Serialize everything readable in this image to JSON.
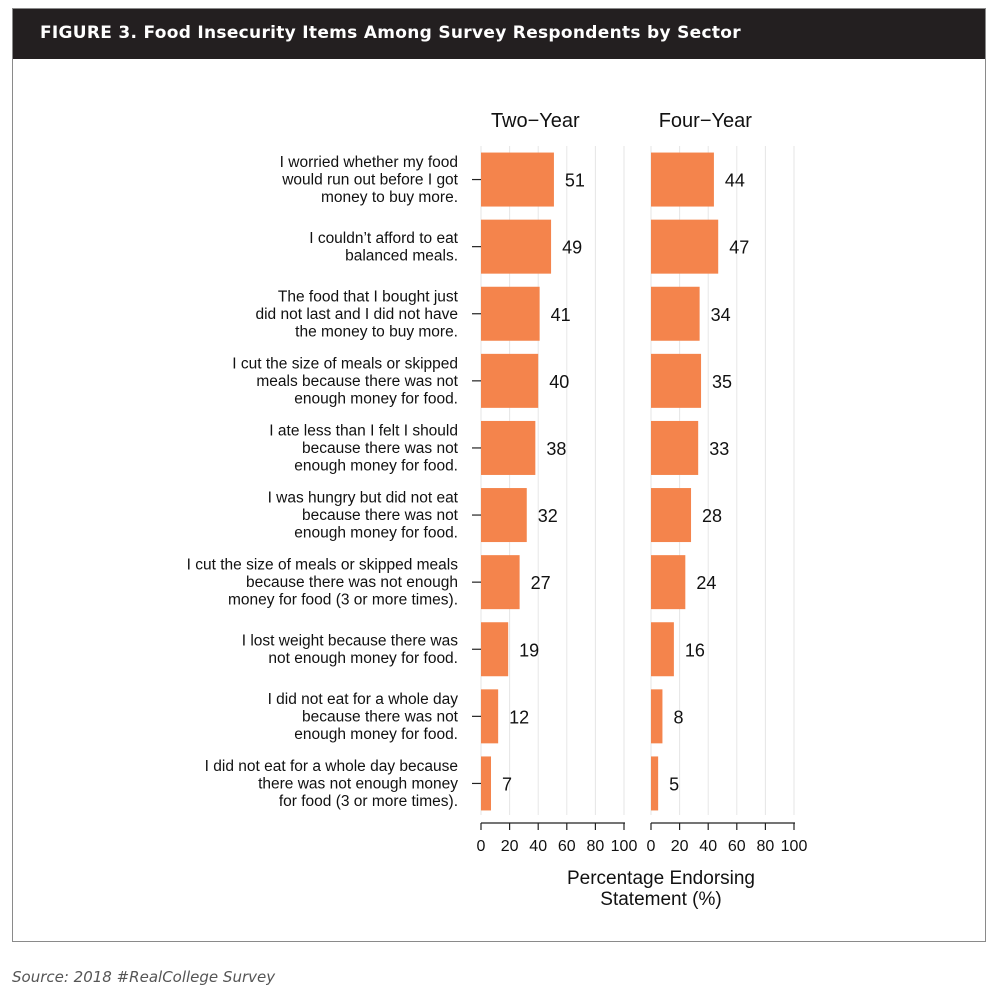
{
  "figure_title": "FIGURE 3. Food Insecurity Items Among Survey Respondents by Sector",
  "source_note": "Source: 2018 #RealCollege Survey",
  "chart_data": {
    "type": "bar",
    "orientation": "horizontal",
    "title": "FIGURE 3. Food Insecurity Items Among Survey Respondents by Sector",
    "xlabel": [
      "Percentage Endorsing",
      "Statement (%)"
    ],
    "xlim": [
      0,
      100
    ],
    "xticks": [
      0,
      20,
      40,
      60,
      80,
      100
    ],
    "grid": true,
    "bar_color": "#f4844c",
    "categories": [
      [
        "I worried whether my food",
        "would run out before I got",
        "money to buy more."
      ],
      [
        "I couldn’t afford to eat",
        "balanced meals."
      ],
      [
        "The food that I bought just",
        "did not last and I did not have",
        "the money to buy more."
      ],
      [
        "I cut the size of meals or skipped",
        "meals because there was not",
        "enough money for food."
      ],
      [
        "I ate less than I felt I should",
        "because there was not",
        "enough money for food."
      ],
      [
        "I was hungry but did not eat",
        "because there was not",
        "enough money for food."
      ],
      [
        "I cut the size of meals or skipped meals",
        "because there was not enough",
        "money for food (3 or more times)."
      ],
      [
        "I lost weight because there was",
        "not enough money for food."
      ],
      [
        "I did not eat for a whole day",
        "because there was not",
        "enough money for food."
      ],
      [
        "I did not eat for a whole day because",
        "there was not enough money",
        "for food (3 or more times)."
      ]
    ],
    "panels": [
      {
        "name": "Two−Year",
        "values": [
          51,
          49,
          41,
          40,
          38,
          32,
          27,
          19,
          12,
          7
        ]
      },
      {
        "name": "Four−Year",
        "values": [
          44,
          47,
          34,
          35,
          33,
          28,
          24,
          16,
          8,
          5
        ]
      }
    ]
  }
}
